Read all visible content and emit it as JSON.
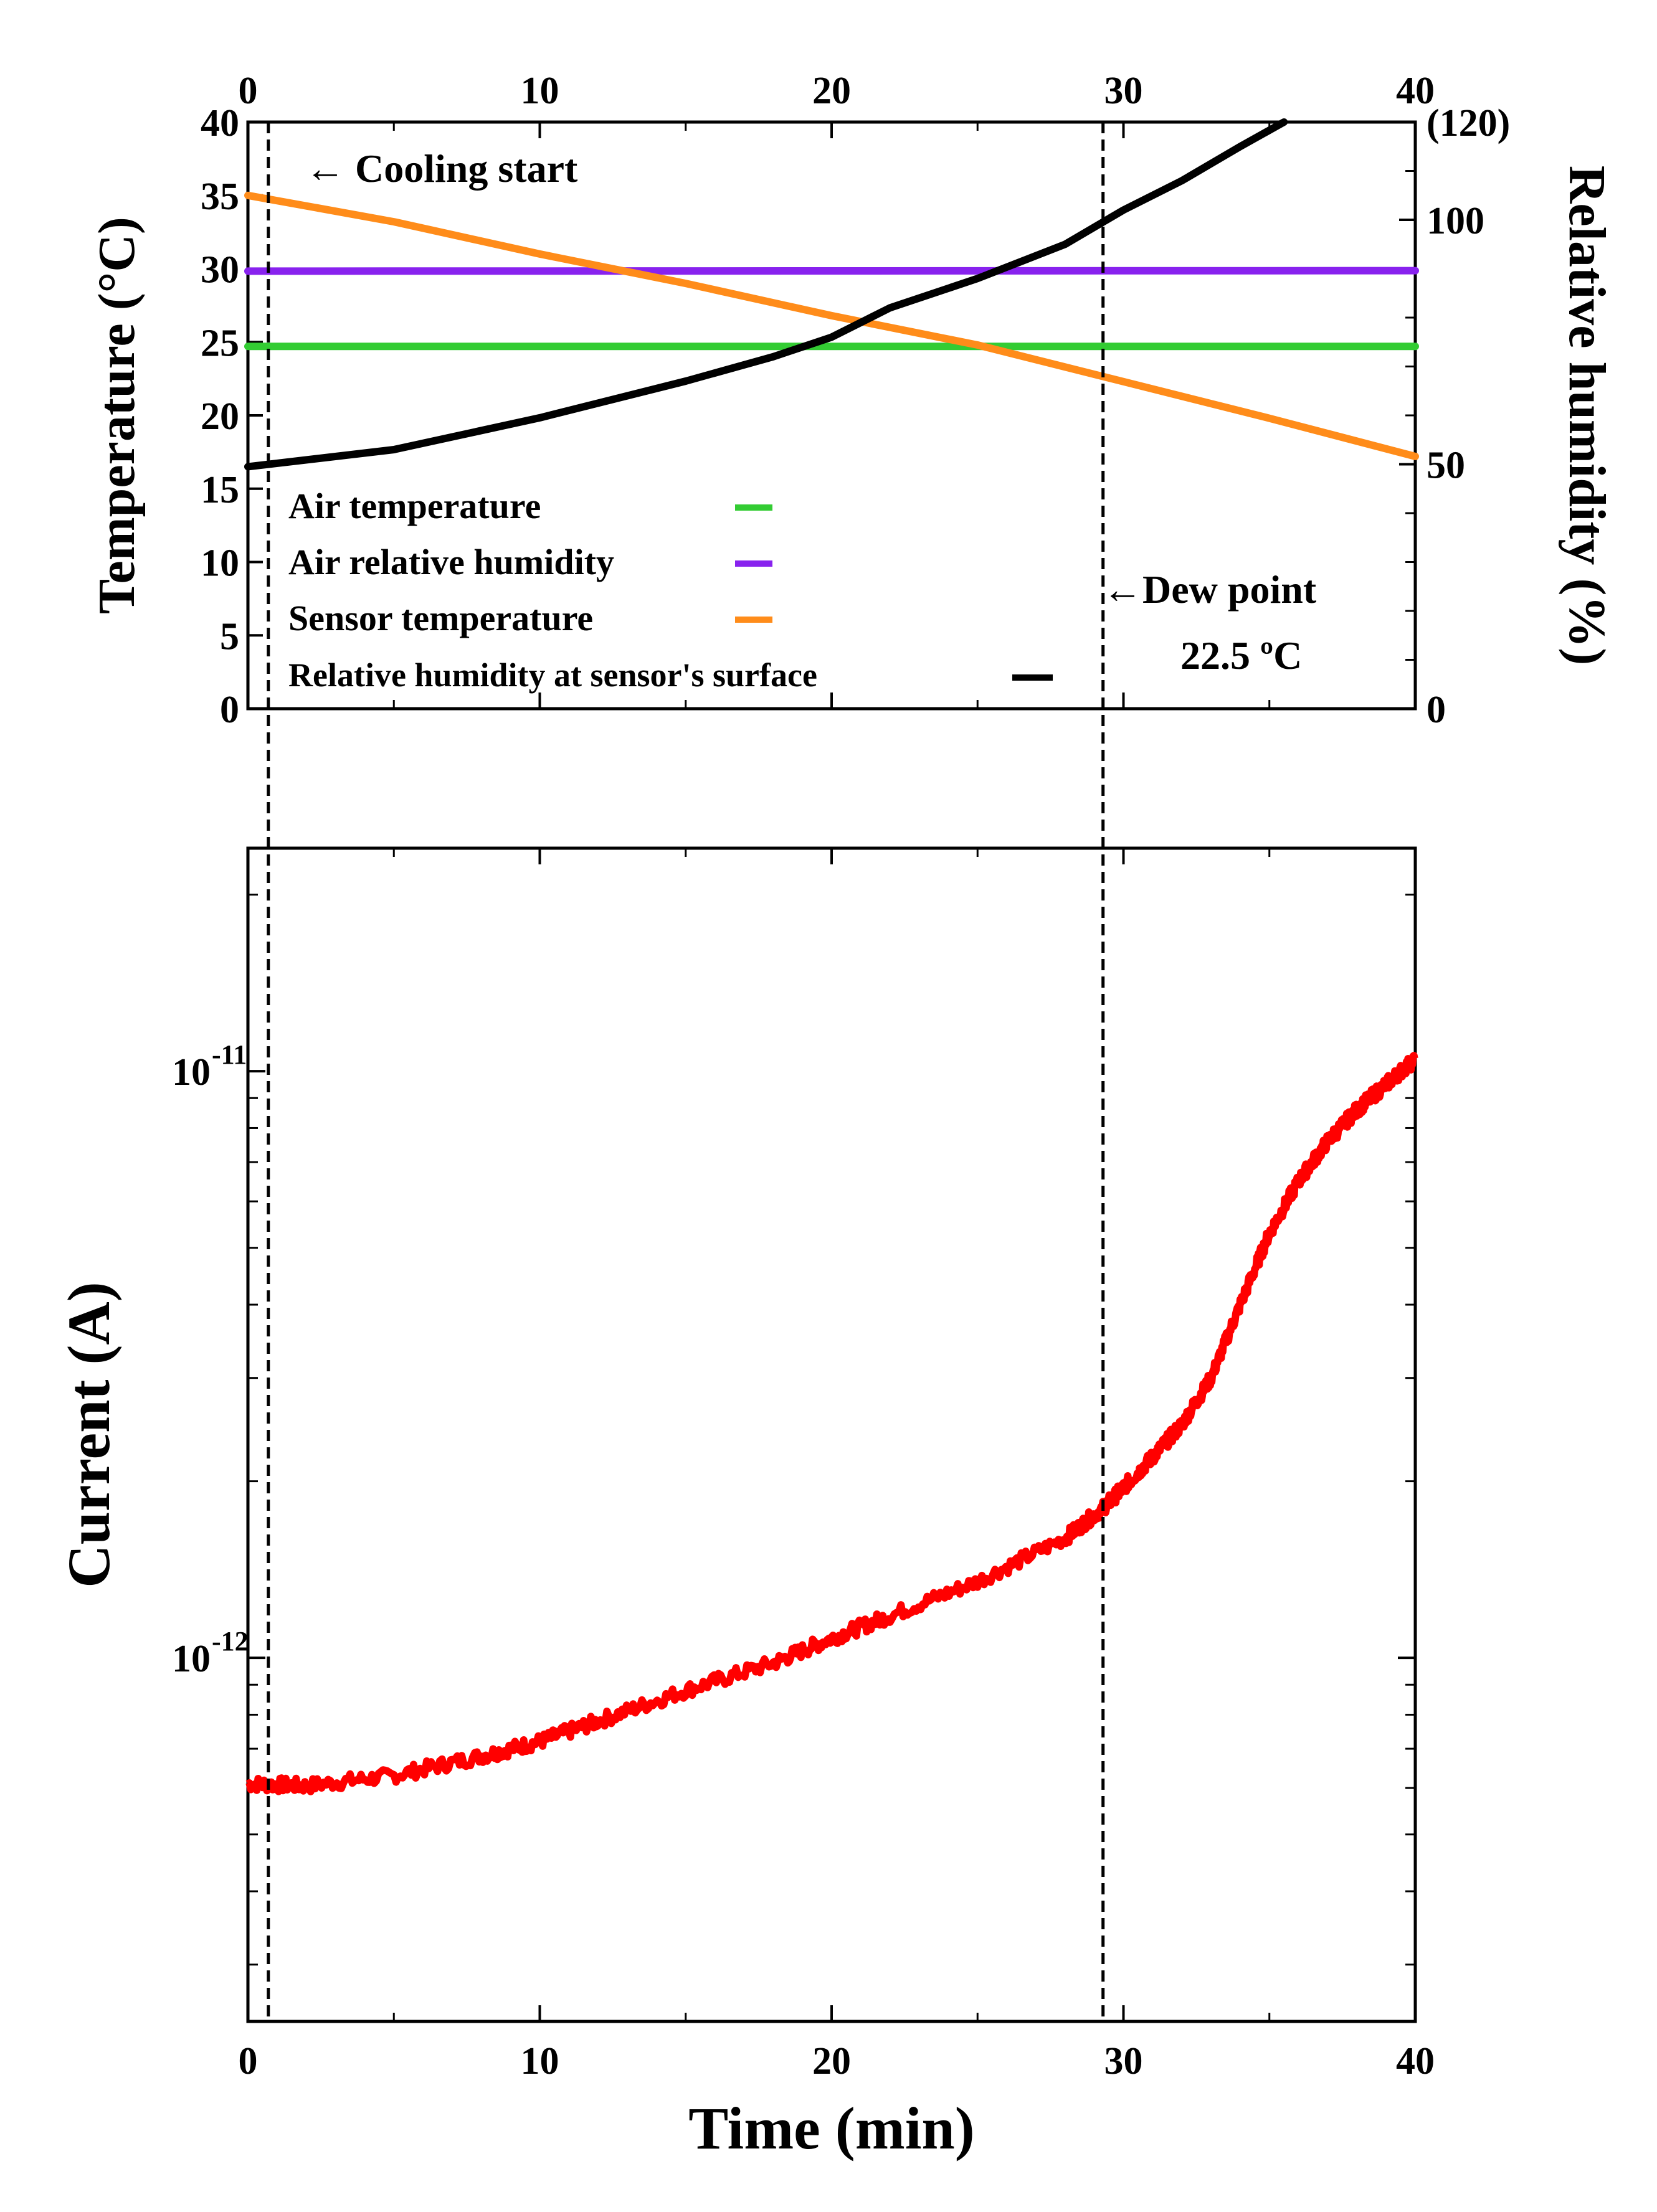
{
  "chart_data": [
    {
      "type": "line",
      "panel": "top",
      "xlabel_top_ticks": [
        "0",
        "10",
        "20",
        "30",
        "40"
      ],
      "xlim": [
        0,
        40
      ],
      "ylabel": "Temperature (°C)",
      "ylim": [
        0,
        40
      ],
      "yticks": [
        "0",
        "5",
        "10",
        "15",
        "20",
        "25",
        "30",
        "35",
        "40"
      ],
      "y2label": "Relative humidity (%)",
      "y2lim": [
        0,
        120
      ],
      "y2ticks": [
        "0",
        "50",
        "100",
        "(120)"
      ],
      "series": [
        {
          "name": "Air temperature",
          "axis": "left",
          "color": "#33cc33",
          "x": [
            0,
            40
          ],
          "y": [
            24.7,
            24.7
          ]
        },
        {
          "name": "Air relative humidity",
          "axis": "right",
          "color": "#8822ee",
          "x": [
            0,
            40
          ],
          "y": [
            89.5,
            89.6
          ]
        },
        {
          "name": "Sensor temperature",
          "axis": "left",
          "color": "#ff8c1a",
          "x": [
            0,
            5,
            10,
            15,
            20,
            25,
            30,
            35,
            40
          ],
          "y": [
            35.0,
            33.2,
            31.0,
            29.0,
            26.8,
            24.8,
            22.3,
            19.8,
            17.2
          ]
        },
        {
          "name": "Relative humidity at sensor's surface",
          "axis": "right",
          "color": "#000000",
          "x": [
            0,
            5,
            10,
            15,
            18,
            20,
            22,
            25,
            28,
            30,
            32,
            34,
            35.5
          ],
          "y": [
            49.5,
            53,
            59.5,
            67,
            72,
            76,
            82,
            88,
            95,
            102,
            108,
            115,
            120
          ]
        }
      ],
      "annotations": {
        "cooling_start": {
          "text": "← Cooling start",
          "x": 0.7
        },
        "dew_point": {
          "text": "←Dew point",
          "value": "22.5 ºC",
          "x": 29.3
        }
      }
    },
    {
      "type": "line",
      "panel": "bottom",
      "xlabel": "Time (min)",
      "xlim": [
        0,
        40
      ],
      "xticks": [
        "0",
        "10",
        "20",
        "30",
        "40"
      ],
      "ylabel": "Current (A)",
      "yscale": "log",
      "ylim": [
        2.4e-13,
        2.4e-11
      ],
      "yticks": [
        {
          "value": 1e-11,
          "base": "10",
          "exp": "-11"
        },
        {
          "value": 1e-12,
          "base": "10",
          "exp": "-12"
        }
      ],
      "series": [
        {
          "name": "Current",
          "color": "#ff0000",
          "x": [
            0,
            2,
            5,
            8,
            10,
            12,
            15,
            18,
            20,
            22,
            25,
            28,
            29.3,
            30,
            31,
            32,
            33,
            34,
            35,
            36,
            37,
            38,
            39,
            40
          ],
          "y": [
            6.1e-13,
            6.05e-13,
            6.3e-13,
            6.8e-13,
            7.2e-13,
            7.8e-13,
            8.8e-13,
            9.8e-13,
            1.08e-12,
            1.18e-12,
            1.35e-12,
            1.6e-12,
            1.8e-12,
            1.95e-12,
            2.2e-12,
            2.5e-12,
            3e-12,
            4e-12,
            5.3e-12,
            6.5e-12,
            7.6e-12,
            8.6e-12,
            9.5e-12,
            1.05e-11
          ]
        }
      ]
    }
  ]
}
